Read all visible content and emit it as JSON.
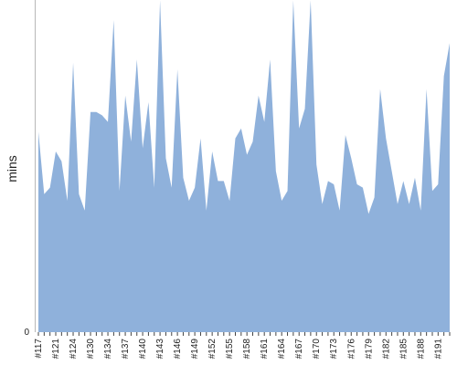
{
  "chart_data": {
    "type": "area",
    "ylabel": "mins",
    "xlabel": "",
    "title": "",
    "ylim": [
      0,
      100
    ],
    "grid": false,
    "legend": "none",
    "colors": {
      "fill": "#8fb1db",
      "axis": "#b8b8b8",
      "text": "#222222"
    },
    "x_tick_labels": [
      "#117",
      "#121",
      "#124",
      "#130",
      "#134",
      "#137",
      "#140",
      "#143",
      "#146",
      "#149",
      "#152",
      "#155",
      "#158",
      "#161",
      "#164",
      "#167",
      "#170",
      "#173",
      "#176",
      "#179",
      "#182",
      "#185",
      "#188",
      "#191"
    ],
    "y_tick_labels": [
      "0"
    ],
    "series": [
      {
        "values": [
          61,
          42,
          44,
          55,
          52,
          40,
          82,
          42,
          37,
          67,
          67,
          66,
          64,
          95,
          43,
          72,
          58,
          83,
          56,
          70,
          44,
          101,
          53,
          44,
          80,
          47,
          40,
          44,
          59,
          37,
          55,
          46,
          46,
          40,
          59,
          62,
          54,
          58,
          72,
          64,
          83,
          49,
          40,
          43,
          101,
          62,
          68,
          101,
          51,
          39,
          46,
          45,
          37,
          60,
          53,
          45,
          44,
          36,
          41,
          74,
          59,
          49,
          39,
          46,
          39,
          47,
          37,
          74,
          43,
          45,
          78,
          88
        ]
      }
    ]
  }
}
